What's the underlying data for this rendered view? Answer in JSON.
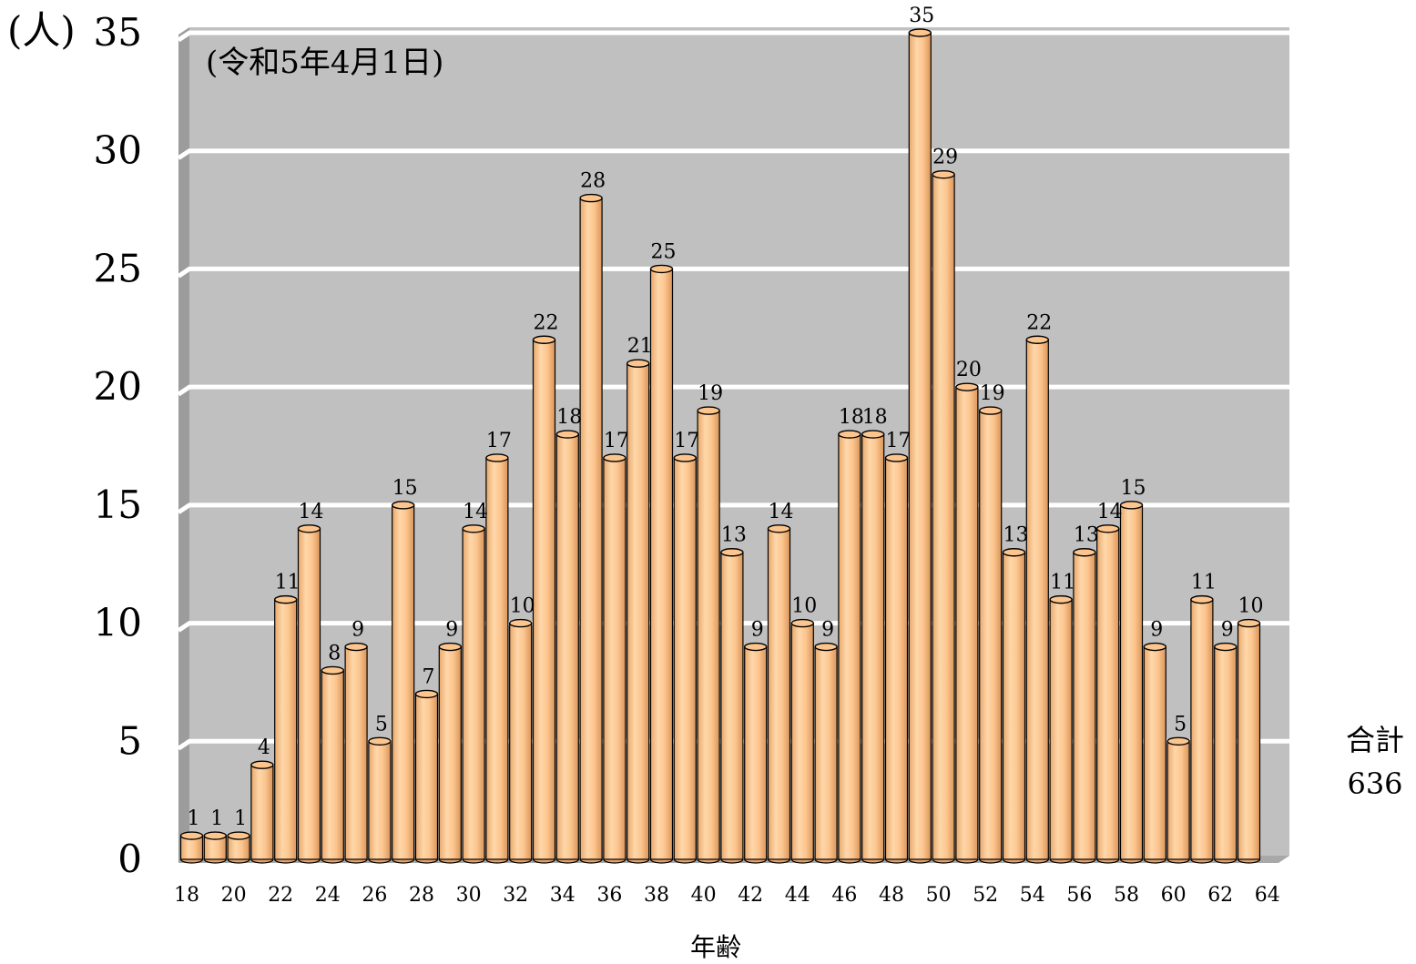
{
  "chart_data": {
    "type": "bar",
    "unit_label": "(人)",
    "annotation": "(令和5年4月1日)",
    "xlabel": "年齢",
    "total_label": "合計",
    "total_value": "636",
    "ylim": [
      0,
      35
    ],
    "y_ticks": [
      "0",
      "5",
      "10",
      "15",
      "20",
      "25",
      "30",
      "35"
    ],
    "grid": true,
    "categories": [
      "18",
      "19",
      "20",
      "21",
      "22",
      "23",
      "24",
      "25",
      "26",
      "27",
      "28",
      "29",
      "30",
      "31",
      "32",
      "33",
      "34",
      "35",
      "36",
      "37",
      "38",
      "39",
      "40",
      "41",
      "42",
      "43",
      "44",
      "45",
      "46",
      "47",
      "48",
      "49",
      "50",
      "51",
      "52",
      "53",
      "54",
      "55",
      "56",
      "57",
      "58",
      "59",
      "60",
      "61",
      "62",
      "63"
    ],
    "x_tick_labels": [
      "18",
      "20",
      "22",
      "24",
      "26",
      "28",
      "30",
      "32",
      "34",
      "36",
      "38",
      "40",
      "42",
      "44",
      "46",
      "48",
      "50",
      "52",
      "54",
      "56",
      "58",
      "60",
      "62",
      "64"
    ],
    "values": [
      1,
      1,
      1,
      4,
      11,
      14,
      8,
      9,
      5,
      15,
      7,
      9,
      14,
      17,
      10,
      22,
      18,
      28,
      17,
      21,
      25,
      17,
      19,
      13,
      9,
      14,
      10,
      9,
      18,
      18,
      17,
      35,
      29,
      20,
      19,
      13,
      22,
      11,
      13,
      14,
      15,
      9,
      5,
      11,
      9,
      10
    ],
    "colors": {
      "plot_background": "#c0c0c0",
      "bar_fill": "#fcc58e",
      "bar_outline": "#000000",
      "grid": "#ffffff"
    }
  }
}
